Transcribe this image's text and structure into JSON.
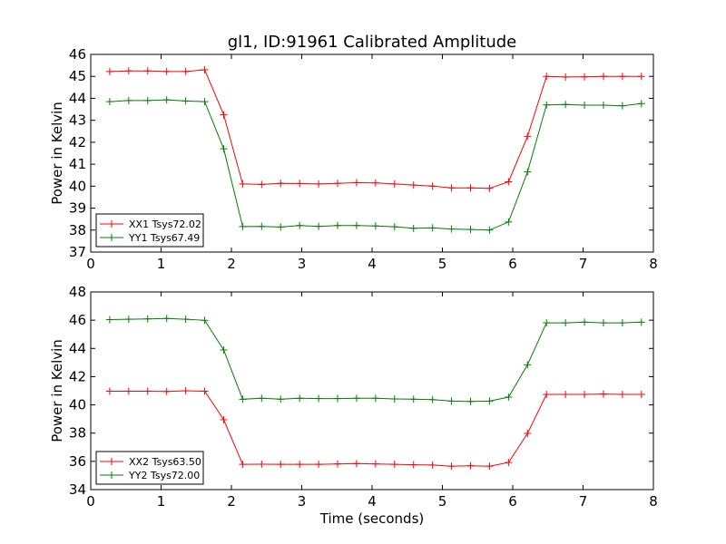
{
  "chart_data": [
    {
      "type": "line",
      "title": "gl1, ID:91961 Calibrated Amplitude",
      "xlabel": "",
      "ylabel": "Power in Kelvin",
      "xlim": [
        0,
        8
      ],
      "ylim": [
        37,
        46
      ],
      "xticks": [
        "0",
        "1",
        "2",
        "3",
        "4",
        "5",
        "6",
        "7",
        "8"
      ],
      "yticks": [
        "37",
        "38",
        "39",
        "40",
        "41",
        "42",
        "43",
        "44",
        "45",
        "46"
      ],
      "grid": false,
      "legend_position": "lower-left",
      "x": [
        0.27,
        0.54,
        0.81,
        1.08,
        1.35,
        1.62,
        1.89,
        2.16,
        2.43,
        2.7,
        2.97,
        3.24,
        3.51,
        3.78,
        4.05,
        4.32,
        4.59,
        4.86,
        5.13,
        5.4,
        5.67,
        5.94,
        6.21,
        6.48,
        6.75,
        7.02,
        7.29,
        7.56,
        7.83
      ],
      "series": [
        {
          "name": "XX1 Tsys72.02",
          "color": "#ff0000",
          "values": [
            45.22,
            45.25,
            45.25,
            45.22,
            45.22,
            45.3,
            43.25,
            40.1,
            40.08,
            40.13,
            40.12,
            40.1,
            40.13,
            40.16,
            40.15,
            40.1,
            40.05,
            40.0,
            39.92,
            39.92,
            39.9,
            40.2,
            42.27,
            45.0,
            44.97,
            44.98,
            45.0,
            45.0,
            45.0
          ]
        },
        {
          "name": "YY1 Tsys67.49",
          "color": "#008000",
          "values": [
            43.85,
            43.9,
            43.9,
            43.93,
            43.88,
            43.85,
            41.7,
            38.16,
            38.17,
            38.14,
            38.21,
            38.17,
            38.21,
            38.21,
            38.19,
            38.15,
            38.08,
            38.1,
            38.05,
            38.03,
            38.0,
            38.37,
            40.65,
            43.7,
            43.72,
            43.69,
            43.69,
            43.66,
            43.76
          ]
        }
      ]
    },
    {
      "type": "line",
      "title": "",
      "xlabel": "Time (seconds)",
      "ylabel": "Power in Kelvin",
      "xlim": [
        0,
        8
      ],
      "ylim": [
        34,
        48
      ],
      "xticks": [
        "0",
        "1",
        "2",
        "3",
        "4",
        "5",
        "6",
        "7",
        "8"
      ],
      "yticks": [
        "34",
        "36",
        "38",
        "40",
        "42",
        "44",
        "46",
        "48"
      ],
      "grid": false,
      "legend_position": "lower-left",
      "x": [
        0.27,
        0.54,
        0.81,
        1.08,
        1.35,
        1.62,
        1.89,
        2.16,
        2.43,
        2.7,
        2.97,
        3.24,
        3.51,
        3.78,
        4.05,
        4.32,
        4.59,
        4.86,
        5.13,
        5.4,
        5.67,
        5.94,
        6.21,
        6.48,
        6.75,
        7.02,
        7.29,
        7.56,
        7.83
      ],
      "series": [
        {
          "name": "XX2 Tsys63.50",
          "color": "#ff0000",
          "values": [
            40.97,
            40.97,
            40.97,
            40.95,
            41.0,
            40.97,
            38.95,
            35.79,
            35.8,
            35.79,
            35.79,
            35.79,
            35.82,
            35.84,
            35.82,
            35.79,
            35.76,
            35.74,
            35.66,
            35.69,
            35.66,
            35.92,
            37.98,
            40.74,
            40.74,
            40.74,
            40.77,
            40.74,
            40.74
          ]
        },
        {
          "name": "YY2 Tsys72.00",
          "color": "#008000",
          "values": [
            46.04,
            46.07,
            46.09,
            46.12,
            46.07,
            45.99,
            43.89,
            40.4,
            40.47,
            40.4,
            40.47,
            40.45,
            40.45,
            40.47,
            40.47,
            40.42,
            40.4,
            40.37,
            40.27,
            40.24,
            40.27,
            40.55,
            42.84,
            45.81,
            45.81,
            45.86,
            45.81,
            45.81,
            45.86
          ]
        }
      ]
    }
  ]
}
